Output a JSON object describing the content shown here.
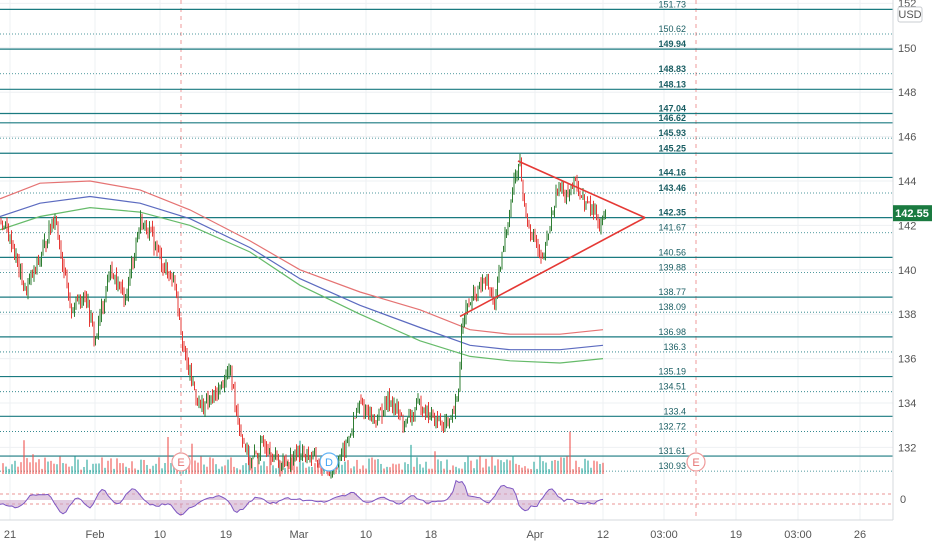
{
  "chart_data": {
    "type": "line",
    "currency": "USD",
    "price_axis_ticks": [
      132,
      134,
      136,
      138,
      140,
      142,
      144,
      146,
      148,
      150,
      152
    ],
    "top_partial_tick": "152",
    "last_price": "142.55",
    "time_axis_labels": [
      "21",
      "Feb",
      "10",
      "19",
      "Mar",
      "10",
      "18",
      "Apr",
      "12",
      "03:00",
      "19",
      "03:00",
      "26"
    ],
    "levels": [
      {
        "value": 151.73,
        "label": "151.73",
        "style": "solid",
        "bold": false
      },
      {
        "value": 150.62,
        "label": "150.62",
        "style": "dotted",
        "bold": false
      },
      {
        "value": 149.94,
        "label": "149.94",
        "style": "solid",
        "bold": true
      },
      {
        "value": 148.83,
        "label": "148.83",
        "style": "dotted",
        "bold": true
      },
      {
        "value": 148.13,
        "label": "148.13",
        "style": "solid",
        "bold": true
      },
      {
        "value": 147.04,
        "label": "147.04",
        "style": "solid",
        "bold": true
      },
      {
        "value": 146.62,
        "label": "146.62",
        "style": "solid",
        "bold": true
      },
      {
        "value": 145.93,
        "label": "145.93",
        "style": "dotted",
        "bold": true
      },
      {
        "value": 145.25,
        "label": "145.25",
        "style": "solid",
        "bold": true
      },
      {
        "value": 144.16,
        "label": "144.16",
        "style": "solid",
        "bold": true
      },
      {
        "value": 143.46,
        "label": "143.46",
        "style": "dotted",
        "bold": true
      },
      {
        "value": 142.35,
        "label": "142.35",
        "style": "solid",
        "bold": true
      },
      {
        "value": 141.67,
        "label": "141.67",
        "style": "dotted",
        "bold": false
      },
      {
        "value": 140.56,
        "label": "140.56",
        "style": "solid",
        "bold": false
      },
      {
        "value": 139.88,
        "label": "139.88",
        "style": "dotted",
        "bold": false
      },
      {
        "value": 138.77,
        "label": "138.77",
        "style": "solid",
        "bold": false
      },
      {
        "value": 138.09,
        "label": "138.09",
        "style": "dotted",
        "bold": false
      },
      {
        "value": 136.98,
        "label": "136.98",
        "style": "solid",
        "bold": false
      },
      {
        "value": 136.3,
        "label": "136.3",
        "style": "dotted",
        "bold": false
      },
      {
        "value": 135.19,
        "label": "135.19",
        "style": "solid",
        "bold": false
      },
      {
        "value": 134.51,
        "label": "134.51",
        "style": "dotted",
        "bold": false
      },
      {
        "value": 133.4,
        "label": "133.4",
        "style": "solid",
        "bold": false
      },
      {
        "value": 132.72,
        "label": "132.72",
        "style": "dotted",
        "bold": false
      },
      {
        "value": 131.61,
        "label": "131.61",
        "style": "solid",
        "bold": false
      },
      {
        "value": 130.93,
        "label": "130.93",
        "style": "dotted",
        "bold": false
      }
    ],
    "events": [
      {
        "label": "E",
        "kind": "earnings"
      },
      {
        "label": "D",
        "kind": "dividend"
      },
      {
        "label": "E",
        "kind": "earnings"
      }
    ],
    "oscillator_zero_label": "0",
    "grid": true,
    "colors": {
      "level_line": "#1a7a80",
      "up_bar": "#26a69a",
      "down_bar": "#ef5350",
      "candle_up": "#2e7d32",
      "candle_down": "#e53935",
      "ma_red": "#e57373",
      "ma_blue": "#5c6bc0",
      "ma_green": "#66bb6a",
      "triangle": "#e53935",
      "last_price_bg": "#1a7a40"
    }
  }
}
